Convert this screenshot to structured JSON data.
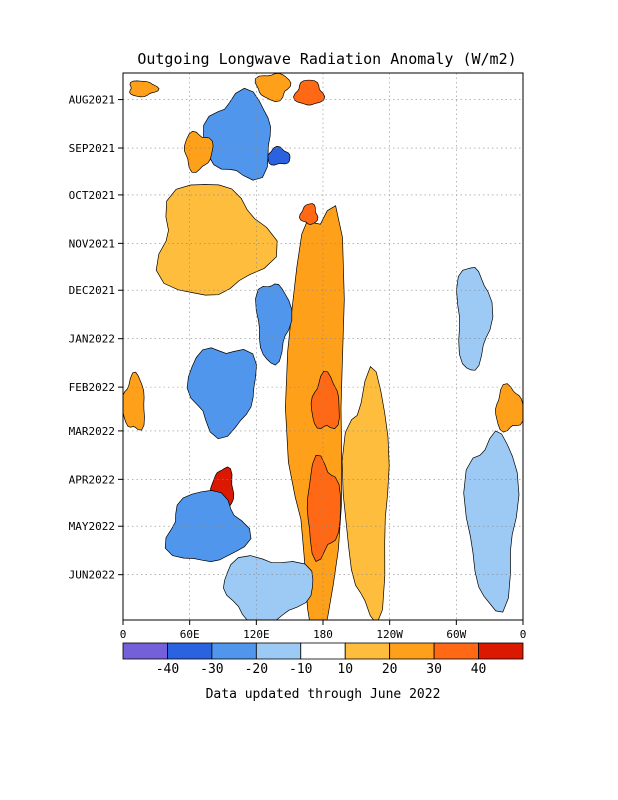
{
  "chart_data": {
    "type": "heatmap",
    "title": "Outgoing Longwave Radiation Anomaly (W/m2)",
    "footnote": "Data updated through June 2022",
    "x_tick_labels": [
      "0",
      "60E",
      "120E",
      "180",
      "120W",
      "60W",
      "0"
    ],
    "x_ticks_lon": [
      0,
      60,
      120,
      180,
      240,
      300,
      360
    ],
    "x_range_lon": [
      0,
      360
    ],
    "y_tick_labels": [
      "AUG2021",
      "SEP2021",
      "OCT2021",
      "NOV2021",
      "DEC2021",
      "JAN2022",
      "FEB2022",
      "MAR2022",
      "APR2022",
      "MAY2022",
      "JUN2022"
    ],
    "y_range": [
      "2021-07-15",
      "2022-06-30"
    ],
    "y_direction": "time increases downward",
    "grid": true,
    "colorbar": {
      "bins": [
        {
          "color": "#7460d8"
        },
        {
          "color": "#2a62e0"
        },
        {
          "color": "#4f96ec"
        },
        {
          "color": "#9dcaf4"
        },
        {
          "color": "#ffffff"
        },
        {
          "color": "#ffbd3e"
        },
        {
          "color": "#ffa01a"
        },
        {
          "color": "#ff6814"
        },
        {
          "color": "#db1800"
        }
      ],
      "labels": [
        "-40",
        "-30",
        "-20",
        "-10",
        "10",
        "20",
        "30",
        "40"
      ]
    },
    "anomaly_features": [
      {
        "level": 30,
        "lon": [
          155,
          180
        ],
        "time": [
          "2021-07-20",
          "2021-08-05"
        ]
      },
      {
        "level": 20,
        "lon": [
          5,
          30
        ],
        "time": [
          "2021-07-20",
          "2021-07-30"
        ]
      },
      {
        "level": 20,
        "lon": [
          120,
          150
        ],
        "time": [
          "2021-07-15",
          "2021-08-01"
        ]
      },
      {
        "level": -20,
        "lon": [
          75,
          135
        ],
        "time": [
          "2021-07-29",
          "2021-09-20"
        ]
      },
      {
        "level": -30,
        "lon": [
          130,
          150
        ],
        "time": [
          "2021-09-01",
          "2021-09-12"
        ]
      },
      {
        "level": 20,
        "lon": [
          55,
          80
        ],
        "time": [
          "2021-08-22",
          "2021-09-15"
        ]
      },
      {
        "level": 20,
        "lon": [
          150,
          200
        ],
        "time": [
          "2021-10-01",
          "2022-06-30"
        ]
      },
      {
        "level": 30,
        "lon": [
          160,
          175
        ],
        "time": [
          "2021-10-07",
          "2021-10-20"
        ]
      },
      {
        "level": 10,
        "lon": [
          30,
          130
        ],
        "time": [
          "2021-09-25",
          "2021-12-05"
        ]
      },
      {
        "level": -20,
        "lon": [
          120,
          150
        ],
        "time": [
          "2021-11-25",
          "2022-01-15"
        ]
      },
      {
        "level": 10,
        "lon": [
          200,
          240
        ],
        "time": [
          "2022-01-25",
          "2022-06-25"
        ]
      },
      {
        "level": 30,
        "lon": [
          170,
          195
        ],
        "time": [
          "2022-01-25",
          "2022-03-01"
        ]
      },
      {
        "level": 30,
        "lon": [
          165,
          195
        ],
        "time": [
          "2022-03-20",
          "2022-05-20"
        ]
      },
      {
        "level": -20,
        "lon": [
          60,
          120
        ],
        "time": [
          "2022-01-05",
          "2022-03-01"
        ]
      },
      {
        "level": 40,
        "lon": [
          80,
          100
        ],
        "time": [
          "2022-03-25",
          "2022-04-20"
        ]
      },
      {
        "level": -20,
        "lon": [
          40,
          110
        ],
        "time": [
          "2022-04-10",
          "2022-05-25"
        ]
      },
      {
        "level": -10,
        "lon": [
          300,
          330
        ],
        "time": [
          "2021-11-15",
          "2022-01-20"
        ]
      },
      {
        "level": -10,
        "lon": [
          310,
          355
        ],
        "time": [
          "2022-03-01",
          "2022-06-20"
        ]
      },
      {
        "level": 20,
        "lon": [
          0,
          20
        ],
        "time": [
          "2022-01-25",
          "2022-03-01"
        ]
      },
      {
        "level": 20,
        "lon": [
          335,
          360
        ],
        "time": [
          "2022-02-01",
          "2022-03-01"
        ]
      },
      {
        "level": -10,
        "lon": [
          90,
          170
        ],
        "time": [
          "2022-05-20",
          "2022-06-30"
        ]
      }
    ]
  }
}
